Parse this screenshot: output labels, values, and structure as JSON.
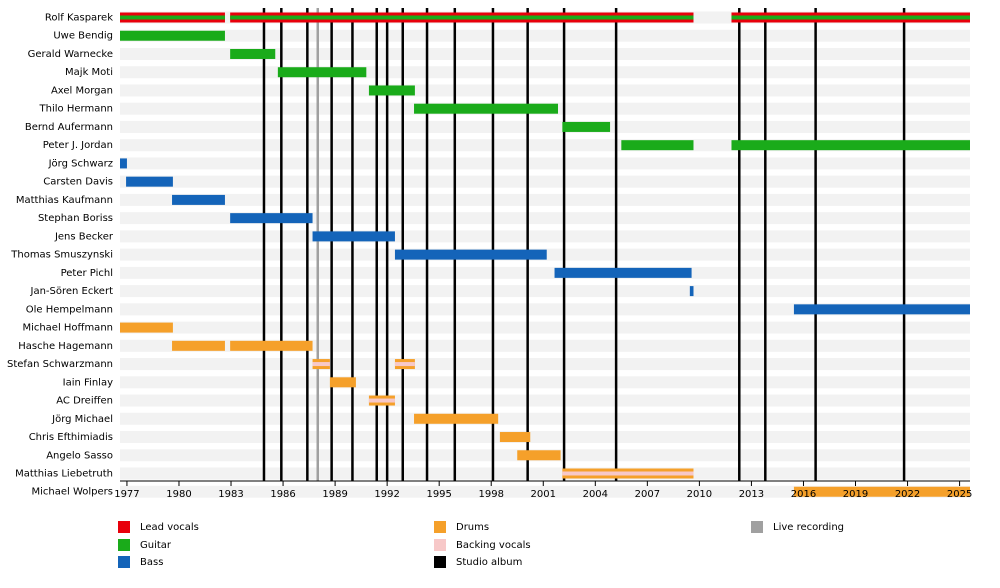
{
  "chart_data": {
    "type": "timeline",
    "xlim": [
      1976.6,
      2025.6
    ],
    "xticks": [
      1977,
      1980,
      1983,
      1986,
      1989,
      1992,
      1995,
      1998,
      2001,
      2004,
      2007,
      2010,
      2013,
      2016,
      2019,
      2022,
      2025
    ],
    "legend": [
      {
        "name": "Lead vocals",
        "color": "#e8000b"
      },
      {
        "name": "Guitar",
        "color": "#1aab1a"
      },
      {
        "name": "Bass",
        "color": "#1464b9"
      },
      {
        "name": "Drums",
        "color": "#f5a02a"
      },
      {
        "name": "Backing vocals",
        "color": "#f7c8c8"
      },
      {
        "name": "Studio album",
        "color": "#000000"
      },
      {
        "name": "Live recording",
        "color": "#a0a0a0"
      }
    ],
    "studio_albums": [
      1984.9,
      1985.9,
      1987.4,
      1988.8,
      1990.0,
      1991.4,
      1992.0,
      1992.9,
      1994.3,
      1995.9,
      1998.1,
      2000.1,
      2002.2,
      2005.2,
      2012.3,
      2013.8,
      2016.7,
      2021.8
    ],
    "live_recordings": [
      1988.0
    ],
    "rows": [
      {
        "name": "Rolf Kasparek",
        "bars": [
          {
            "start": 1976.6,
            "end": 1982.65,
            "colors": [
              "#e8000b",
              "#1aab1a"
            ]
          },
          {
            "start": 1982.95,
            "end": 2009.66,
            "colors": [
              "#e8000b",
              "#1aab1a"
            ]
          },
          {
            "start": 2011.85,
            "end": 2025.6,
            "colors": [
              "#e8000b",
              "#1aab1a"
            ]
          }
        ]
      },
      {
        "name": "Uwe Bendig",
        "bars": [
          {
            "start": 1976.6,
            "end": 1982.65,
            "colors": [
              "#1aab1a"
            ]
          }
        ]
      },
      {
        "name": "Gerald Warnecke",
        "bars": [
          {
            "start": 1982.95,
            "end": 1985.55,
            "colors": [
              "#1aab1a"
            ]
          }
        ]
      },
      {
        "name": "Majk Moti",
        "bars": [
          {
            "start": 1985.7,
            "end": 1990.8,
            "colors": [
              "#1aab1a"
            ]
          }
        ]
      },
      {
        "name": "Axel Morgan",
        "bars": [
          {
            "start": 1990.95,
            "end": 1993.6,
            "colors": [
              "#1aab1a"
            ]
          }
        ]
      },
      {
        "name": "Thilo Hermann",
        "bars": [
          {
            "start": 1993.55,
            "end": 2001.85,
            "colors": [
              "#1aab1a"
            ]
          }
        ]
      },
      {
        "name": "Bernd Aufermann",
        "bars": [
          {
            "start": 2002.1,
            "end": 2004.85,
            "colors": [
              "#1aab1a"
            ]
          }
        ]
      },
      {
        "name": "Peter J. Jordan",
        "bars": [
          {
            "start": 2005.5,
            "end": 2009.66,
            "colors": [
              "#1aab1a"
            ]
          },
          {
            "start": 2011.85,
            "end": 2025.6,
            "colors": [
              "#1aab1a"
            ]
          }
        ]
      },
      {
        "name": "Jörg Schwarz",
        "bars": [
          {
            "start": 1976.6,
            "end": 1977.0,
            "colors": [
              "#1464b9"
            ]
          }
        ]
      },
      {
        "name": "Carsten Davis",
        "bars": [
          {
            "start": 1976.95,
            "end": 1979.65,
            "colors": [
              "#1464b9"
            ]
          }
        ]
      },
      {
        "name": "Matthias Kaufmann",
        "bars": [
          {
            "start": 1979.6,
            "end": 1982.65,
            "colors": [
              "#1464b9"
            ]
          }
        ]
      },
      {
        "name": "Stephan Boriss",
        "bars": [
          {
            "start": 1982.95,
            "end": 1987.7,
            "colors": [
              "#1464b9"
            ]
          }
        ]
      },
      {
        "name": "Jens Becker",
        "bars": [
          {
            "start": 1987.7,
            "end": 1992.45,
            "colors": [
              "#1464b9"
            ]
          }
        ]
      },
      {
        "name": "Thomas Smuszynski",
        "bars": [
          {
            "start": 1992.45,
            "end": 2001.2,
            "colors": [
              "#1464b9"
            ]
          }
        ]
      },
      {
        "name": "Peter Pichl",
        "bars": [
          {
            "start": 2001.65,
            "end": 2009.55,
            "colors": [
              "#1464b9"
            ]
          }
        ]
      },
      {
        "name": "Jan-Sören Eckert",
        "bars": [
          {
            "start": 2009.45,
            "end": 2009.66,
            "colors": [
              "#1464b9"
            ]
          }
        ]
      },
      {
        "name": "Ole Hempelmann",
        "bars": [
          {
            "start": 2015.45,
            "end": 2025.6,
            "colors": [
              "#1464b9"
            ]
          }
        ]
      },
      {
        "name": "Michael Hoffmann",
        "bars": [
          {
            "start": 1976.6,
            "end": 1979.65,
            "colors": [
              "#f5a02a"
            ]
          }
        ]
      },
      {
        "name": "Hasche Hagemann",
        "bars": [
          {
            "start": 1979.6,
            "end": 1982.65,
            "colors": [
              "#f5a02a"
            ]
          },
          {
            "start": 1982.95,
            "end": 1987.7,
            "colors": [
              "#f5a02a"
            ]
          }
        ]
      },
      {
        "name": "Stefan Schwarzmann",
        "bars": [
          {
            "start": 1987.7,
            "end": 1988.7,
            "colors": [
              "#f5a02a",
              "#f7c8c8"
            ]
          },
          {
            "start": 1992.45,
            "end": 1993.6,
            "colors": [
              "#f5a02a",
              "#f7c8c8"
            ]
          }
        ]
      },
      {
        "name": "Iain Finlay",
        "bars": [
          {
            "start": 1988.7,
            "end": 1990.2,
            "colors": [
              "#f5a02a"
            ]
          }
        ]
      },
      {
        "name": "AC Dreiffen",
        "bars": [
          {
            "start": 1990.95,
            "end": 1992.45,
            "colors": [
              "#f5a02a",
              "#f7c8c8"
            ]
          }
        ]
      },
      {
        "name": "Jörg Michael",
        "bars": [
          {
            "start": 1993.55,
            "end": 1998.4,
            "colors": [
              "#f5a02a"
            ]
          }
        ]
      },
      {
        "name": "Chris Efthimiadis",
        "bars": [
          {
            "start": 1998.5,
            "end": 2000.25,
            "colors": [
              "#f5a02a"
            ]
          }
        ]
      },
      {
        "name": "Angelo Sasso",
        "bars": [
          {
            "start": 1999.5,
            "end": 2002.0,
            "colors": [
              "#f5a02a"
            ]
          }
        ]
      },
      {
        "name": "Matthias Liebetruth",
        "bars": [
          {
            "start": 2002.1,
            "end": 2009.66,
            "colors": [
              "#f5a02a",
              "#f7c8c8"
            ]
          }
        ]
      },
      {
        "name": "Michael Wolpers",
        "bars": [
          {
            "start": 2015.45,
            "end": 2025.6,
            "colors": [
              "#f5a02a"
            ]
          }
        ]
      }
    ]
  }
}
